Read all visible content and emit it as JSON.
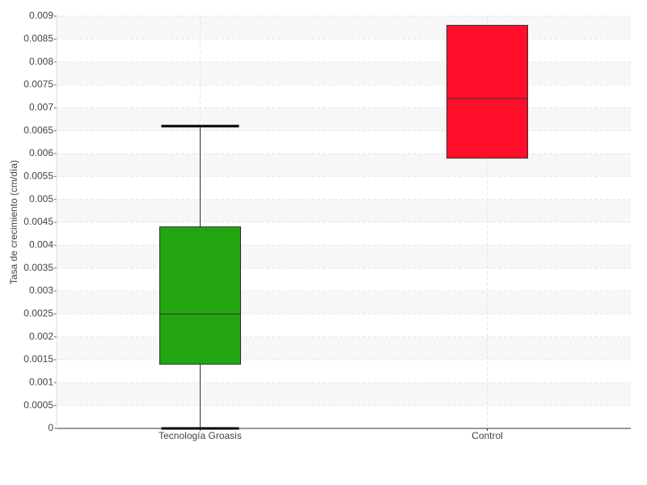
{
  "chart_data": {
    "type": "box",
    "y_label": "Tasa de crecimiento (cm/día)",
    "categories": [
      "Tecnología Groasis",
      "Control"
    ],
    "series": [
      {
        "name": "Tasa de crecimiento",
        "colors": [
          "#22a511",
          "#ff0e2a"
        ],
        "min": [
          0,
          0.0059
        ],
        "q1": [
          0.0014,
          0.0059
        ],
        "median": [
          0.0025,
          0.0072
        ],
        "q3": [
          0.0044,
          0.0088
        ],
        "max": [
          0.0066,
          0.0088
        ]
      }
    ],
    "ylim": [
      0,
      0.009
    ],
    "yticks": [
      0,
      0.0005,
      0.001,
      0.0015,
      0.002,
      0.0025,
      0.003,
      0.0035,
      0.004,
      0.0045,
      0.005,
      0.0055,
      0.006,
      0.0065,
      0.007,
      0.0075,
      0.008,
      0.0085,
      0.009
    ],
    "grid": true
  }
}
